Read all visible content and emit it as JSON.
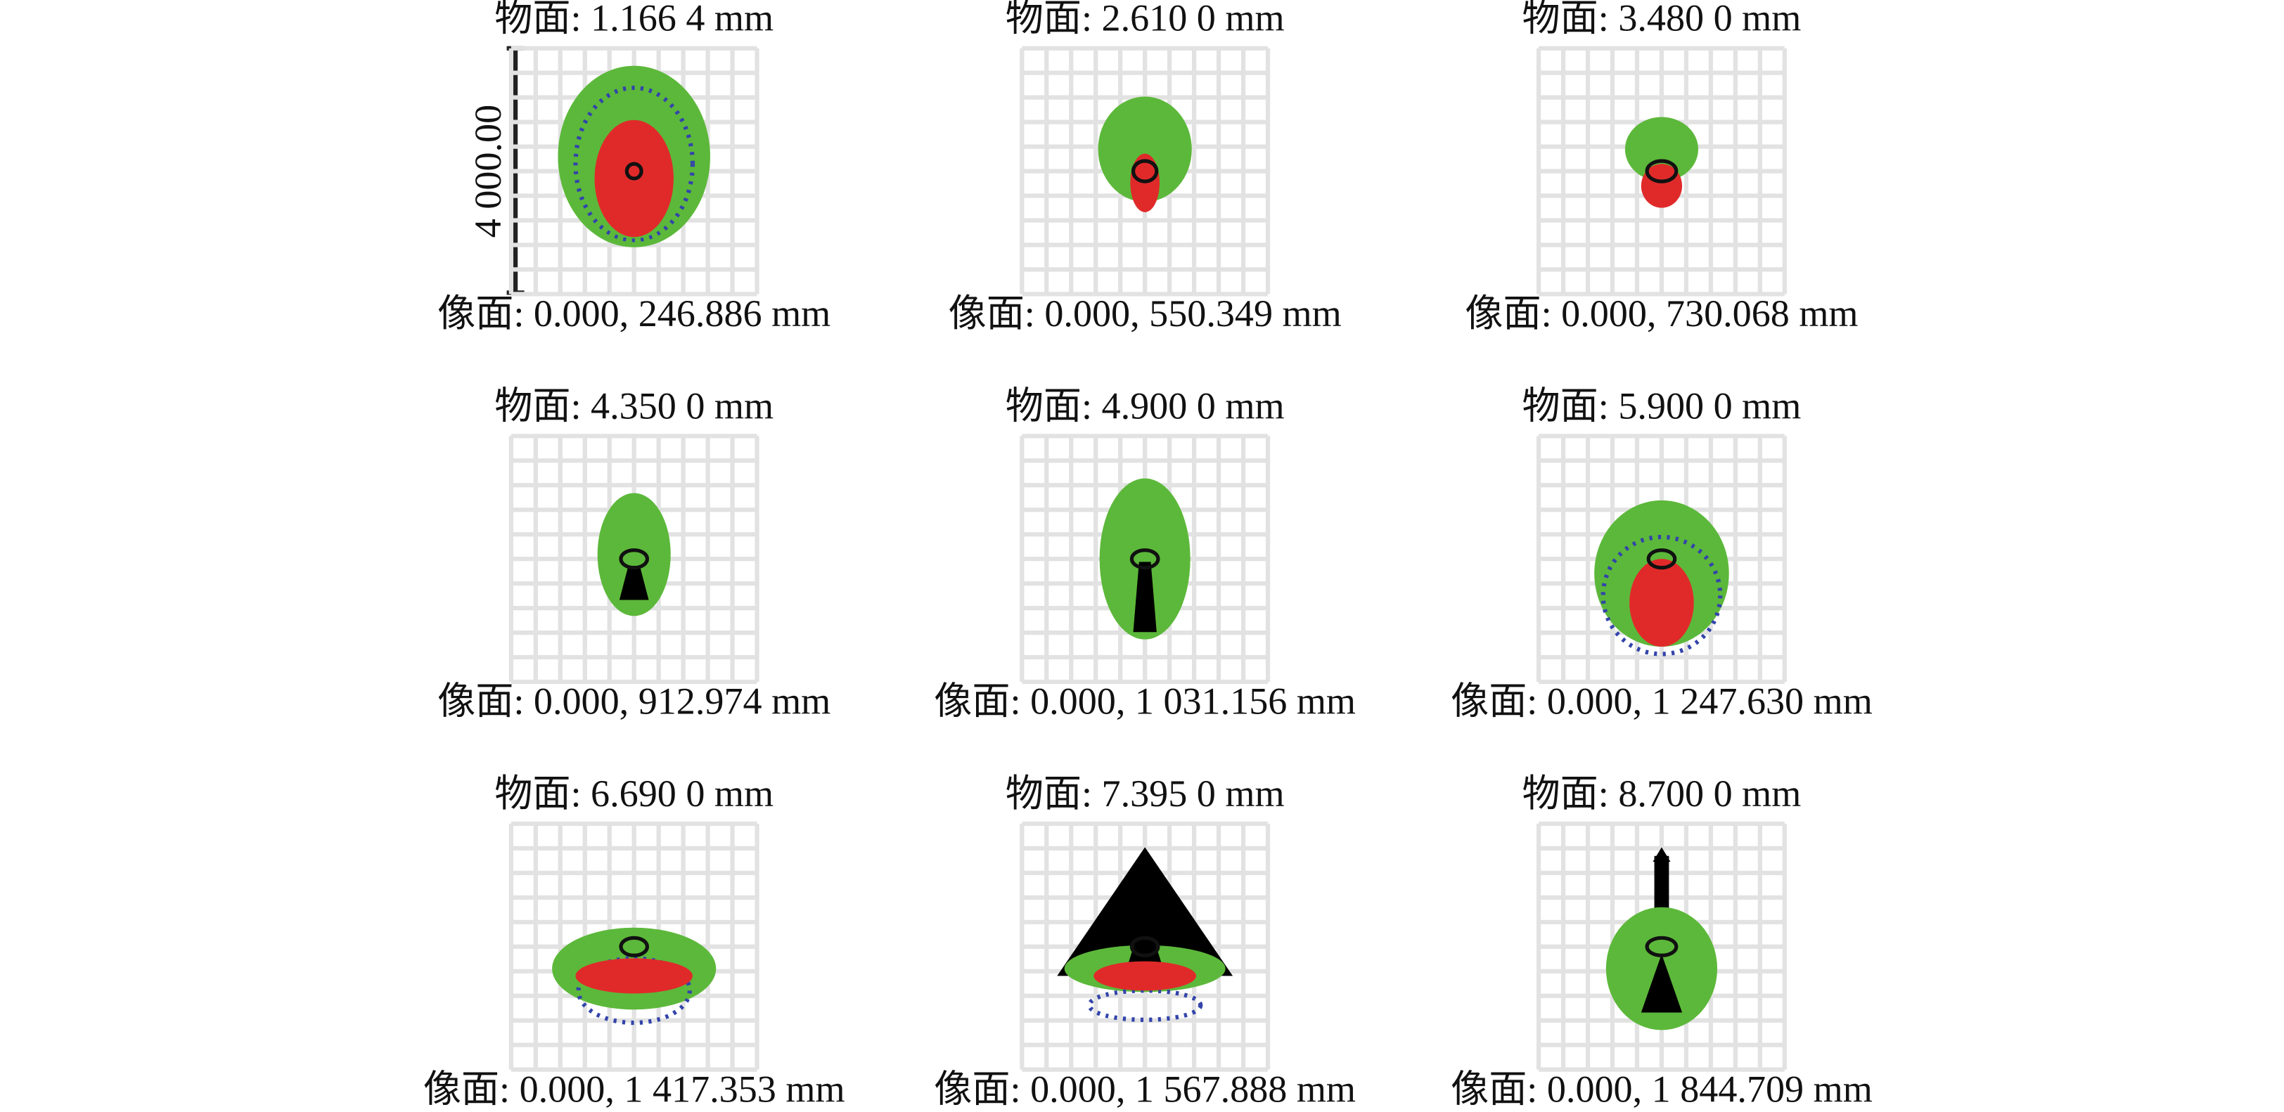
{
  "panels": [
    {
      "object": "物面: 1.166 4 mm",
      "image": "像面: 0.000, 246.886 mm"
    },
    {
      "object": "物面: 2.610 0 mm",
      "image": "像面: 0.000, 550.349 mm"
    },
    {
      "object": "物面: 3.480 0 mm",
      "image": "像面: 0.000, 730.068 mm"
    },
    {
      "object": "物面: 4.350 0 mm",
      "image": "像面: 0.000, 912.974 mm"
    },
    {
      "object": "物面: 4.900 0 mm",
      "image": "像面: 0.000, 1 031.156 mm"
    },
    {
      "object": "物面: 5.900 0 mm",
      "image": "像面: 0.000, 1 247.630 mm"
    },
    {
      "object": "物面: 6.690 0 mm",
      "image": "像面: 0.000, 1 417.353 mm"
    },
    {
      "object": "物面: 7.395 0 mm",
      "image": "像面: 0.000, 1 567.888 mm"
    },
    {
      "object": "物面: 8.700 0 mm",
      "image": "像面: 0.000, 1 844.709 mm"
    }
  ],
  "scale_label": "4 000.00"
}
